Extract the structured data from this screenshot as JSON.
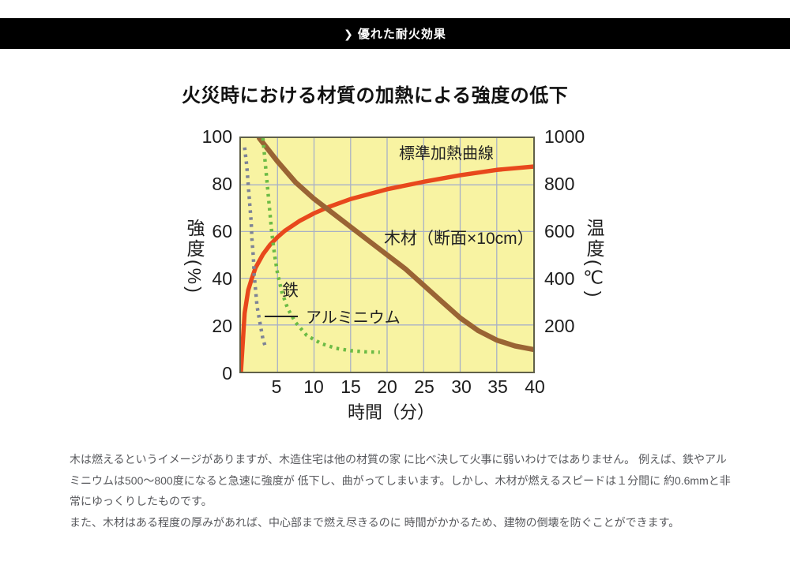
{
  "header": {
    "chevron": "❯",
    "label": "優れた耐火効果",
    "bg_color": "#000000",
    "text_color": "#ffffff"
  },
  "chart": {
    "title": "火災時における材質の加熱による強度の低下",
    "plot_bg_color": "#f8f3a2",
    "grid_color": "#a8b0c6",
    "border_color": "#60604a",
    "labels": {
      "heating": "標準加熱曲線",
      "wood": "木材（断面×10cm）",
      "iron": "鉄",
      "aluminum": "アルミニウム"
    },
    "y_left": {
      "title": "強度(%)",
      "ticks": [
        "100",
        "80",
        "60",
        "40",
        "20",
        "0"
      ]
    },
    "y_right": {
      "title": "温度(℃)",
      "ticks": [
        "1000",
        "800",
        "600",
        "400",
        "200"
      ]
    },
    "x": {
      "title": "時間（分）",
      "ticks": [
        "5",
        "10",
        "15",
        "20",
        "25",
        "30",
        "35",
        "40"
      ]
    }
  },
  "chart_data": {
    "type": "line",
    "title": "火災時における材質の加熱による強度の低下",
    "xlabel": "時間（分）",
    "ylabel_left": "強度(%)",
    "ylabel_right": "温度(℃)",
    "x_max": 40,
    "y_left_max": 100,
    "y_right_max": 1000,
    "x_ticks": [
      5,
      10,
      15,
      20,
      25,
      30,
      35,
      40
    ],
    "y_left_ticks": [
      100,
      80,
      60,
      40,
      20,
      0
    ],
    "y_right_ticks": [
      1000,
      800,
      600,
      400,
      200
    ],
    "grid": {
      "vertical_minutes": [
        5,
        10,
        15,
        20,
        25,
        30,
        35
      ],
      "horizontal_left_values": [
        20,
        40,
        60,
        80
      ]
    },
    "series": [
      {
        "name": "標準加熱曲線",
        "unit": "℃",
        "axis": "right",
        "color": "#e8481c",
        "stroke_width": 5.5,
        "dashed": false,
        "points": [
          [
            0,
            0
          ],
          [
            0.5,
            250
          ],
          [
            1,
            349
          ],
          [
            1.5,
            400
          ],
          [
            2,
            445
          ],
          [
            3,
            502
          ],
          [
            4,
            544
          ],
          [
            5,
            576
          ],
          [
            6,
            603
          ],
          [
            8,
            645
          ],
          [
            10,
            678
          ],
          [
            12,
            705
          ],
          [
            15,
            739
          ],
          [
            20,
            781
          ],
          [
            25,
            813
          ],
          [
            30,
            841
          ],
          [
            35,
            864
          ],
          [
            40,
            878
          ]
        ]
      },
      {
        "name": "木材（断面×10cm）",
        "unit": "%",
        "axis": "left",
        "color": "#9a6434",
        "stroke_width": 6.5,
        "dashed": false,
        "points": [
          [
            2.5,
            100
          ],
          [
            5,
            90
          ],
          [
            7.5,
            81
          ],
          [
            10,
            74
          ],
          [
            12.5,
            68
          ],
          [
            15,
            62
          ],
          [
            17.5,
            56
          ],
          [
            20,
            50
          ],
          [
            22.5,
            44
          ],
          [
            25,
            37
          ],
          [
            27.5,
            30
          ],
          [
            30,
            23
          ],
          [
            32.5,
            17.5
          ],
          [
            35,
            13.5
          ],
          [
            37.5,
            11
          ],
          [
            40,
            9.5
          ]
        ]
      },
      {
        "name": "鉄",
        "unit": "%",
        "axis": "left",
        "color": "#7d8396",
        "stroke_width": 4.5,
        "dashed": true,
        "points": [
          [
            0.5,
            96
          ],
          [
            0.8,
            88
          ],
          [
            1.0,
            80
          ],
          [
            1.2,
            72
          ],
          [
            1.4,
            64
          ],
          [
            1.5,
            57
          ],
          [
            1.7,
            49
          ],
          [
            1.8,
            42
          ],
          [
            2.0,
            35
          ],
          [
            2.2,
            28
          ],
          [
            2.6,
            21
          ],
          [
            3.0,
            14
          ],
          [
            3.3,
            11
          ]
        ]
      },
      {
        "name": "アルミニウム",
        "unit": "%",
        "axis": "left",
        "color": "#6cbb45",
        "stroke_width": 4.5,
        "dashed": true,
        "points": [
          [
            3,
            100
          ],
          [
            3.3,
            90
          ],
          [
            3.6,
            80
          ],
          [
            3.9,
            70
          ],
          [
            4.2,
            60
          ],
          [
            4.6,
            50
          ],
          [
            5,
            42
          ],
          [
            5.6,
            34
          ],
          [
            6.4,
            27
          ],
          [
            7.5,
            21
          ],
          [
            9,
            15.5
          ],
          [
            11,
            12
          ],
          [
            13,
            10
          ],
          [
            15,
            9
          ],
          [
            17,
            8.5
          ],
          [
            19,
            8.3
          ]
        ]
      }
    ]
  },
  "body": {
    "lines": [
      "木は燃えるというイメージがありますが、木造住宅は他の材質の家 に比べ決して火事に弱いわけではありません。 例えば、鉄やアル",
      "ミニウムは500〜800度になると急速に強度が 低下し、曲がってしまいます。しかし、木材が燃えるスピードは１分間に 約0.6mmと非",
      "常にゆっくりしたものです。",
      "また、木材はある程度の厚みがあれば、中心部まで燃え尽きるのに 時間がかかるため、建物の倒壊を防ぐことができます。"
    ]
  }
}
